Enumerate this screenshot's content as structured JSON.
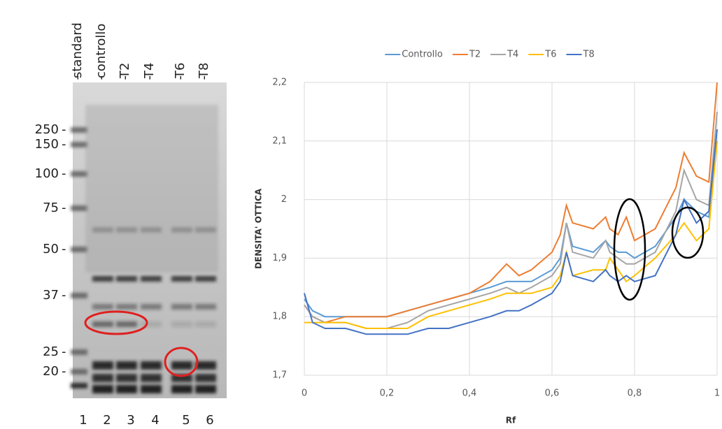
{
  "gel": {
    "lane_labels": [
      "standard",
      "controllo",
      "T2",
      "T4",
      "T6",
      "T8"
    ],
    "mw_labels": [
      "250",
      "150",
      "100",
      "75",
      "50",
      "37",
      "25",
      "20"
    ],
    "lane_numbers": [
      1,
      2,
      3,
      4,
      5,
      6
    ]
  },
  "chart_data": {
    "type": "line",
    "xlabel": "Rf",
    "ylabel": "DENSITA' OTTICA",
    "x": [
      0,
      0.02,
      0.05,
      0.1,
      0.15,
      0.2,
      0.25,
      0.3,
      0.35,
      0.4,
      0.45,
      0.49,
      0.52,
      0.55,
      0.6,
      0.62,
      0.635,
      0.65,
      0.7,
      0.73,
      0.74,
      0.76,
      0.78,
      0.8,
      0.85,
      0.9,
      0.92,
      0.95,
      0.98,
      1.0
    ],
    "series": [
      {
        "name": "Controllo",
        "color": "#5b9bd5",
        "values": [
          1.83,
          1.81,
          1.8,
          1.8,
          1.8,
          1.8,
          1.81,
          1.82,
          1.83,
          1.84,
          1.85,
          1.86,
          1.86,
          1.86,
          1.88,
          1.9,
          1.96,
          1.92,
          1.91,
          1.93,
          1.92,
          1.91,
          1.91,
          1.9,
          1.92,
          1.97,
          2.0,
          1.98,
          1.97,
          2.1
        ]
      },
      {
        "name": "T2",
        "color": "#ed7d31",
        "values": [
          1.82,
          1.8,
          1.79,
          1.8,
          1.8,
          1.8,
          1.81,
          1.82,
          1.83,
          1.84,
          1.86,
          1.89,
          1.87,
          1.88,
          1.91,
          1.94,
          1.99,
          1.96,
          1.95,
          1.97,
          1.95,
          1.94,
          1.97,
          1.93,
          1.95,
          2.02,
          2.08,
          2.04,
          2.03,
          2.2
        ]
      },
      {
        "name": "T4",
        "color": "#a5a5a5",
        "values": [
          1.82,
          1.8,
          1.79,
          1.79,
          1.78,
          1.78,
          1.79,
          1.81,
          1.82,
          1.83,
          1.84,
          1.85,
          1.84,
          1.85,
          1.87,
          1.89,
          1.96,
          1.91,
          1.9,
          1.93,
          1.91,
          1.9,
          1.89,
          1.89,
          1.91,
          1.98,
          2.05,
          2.0,
          1.99,
          2.15
        ]
      },
      {
        "name": "T6",
        "color": "#ffc000",
        "values": [
          1.79,
          1.79,
          1.79,
          1.79,
          1.78,
          1.78,
          1.78,
          1.8,
          1.81,
          1.82,
          1.83,
          1.84,
          1.84,
          1.84,
          1.85,
          1.87,
          1.91,
          1.87,
          1.88,
          1.88,
          1.9,
          1.88,
          1.86,
          1.87,
          1.9,
          1.94,
          1.96,
          1.93,
          1.95,
          2.1
        ]
      },
      {
        "name": "T8",
        "color": "#4472c4",
        "values": [
          1.84,
          1.79,
          1.78,
          1.78,
          1.77,
          1.77,
          1.77,
          1.78,
          1.78,
          1.79,
          1.8,
          1.81,
          1.81,
          1.82,
          1.84,
          1.86,
          1.91,
          1.87,
          1.86,
          1.88,
          1.87,
          1.86,
          1.87,
          1.86,
          1.87,
          1.94,
          2.0,
          1.96,
          1.98,
          2.12
        ]
      }
    ],
    "xlim": [
      0,
      1
    ],
    "xticks": [
      0,
      {
        "value": 0.2,
        "label": "0,2"
      },
      {
        "value": 0.4,
        "label": "0,4"
      },
      {
        "value": 0.6,
        "label": "0,6"
      },
      {
        "value": 0.8,
        "label": "0,8"
      },
      1
    ],
    "ylim": [
      1.7,
      2.2
    ],
    "yticks": [
      {
        "value": 1.7,
        "label": "1,7"
      },
      {
        "value": 1.8,
        "label": "1,8"
      },
      {
        "value": 1.9,
        "label": "1,9"
      },
      2,
      {
        "value": 2.1,
        "label": "2,1"
      },
      {
        "value": 2.2,
        "label": "2,2"
      }
    ],
    "grid": true,
    "legend": "top"
  }
}
